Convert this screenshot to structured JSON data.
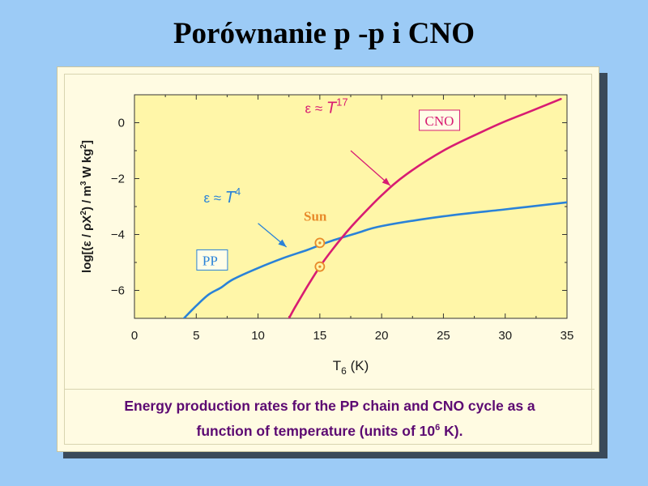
{
  "slide": {
    "title": "Porównanie p -p  i  CNO"
  },
  "caption": {
    "line1": "Energy production rates for the PP chain and CNO cycle as a",
    "line2_pre": "function of temperature (units of 10",
    "line2_sup": "6",
    "line2_post": " K)."
  },
  "chart_data": {
    "type": "line",
    "title": "",
    "xlabel": "T6 (K)",
    "ylabel": "log[(ε/ρX²) / m³ W kg²]",
    "xlabel_parts": {
      "main": "T",
      "sub": "6",
      "rest": " (K)"
    },
    "ylabel_parts": {
      "pre": "log[(ε / ρX",
      "sup1": "2",
      "mid": ") / m",
      "sup2": "3",
      "mid2": "  W kg",
      "sup3": "2",
      "post": "]"
    },
    "xlim": [
      0,
      35
    ],
    "ylim": [
      -7,
      1
    ],
    "xticks": [
      0,
      5,
      10,
      15,
      20,
      25,
      30,
      35
    ],
    "yticks": [
      0,
      -2,
      -4,
      -6
    ],
    "grid": false,
    "series": [
      {
        "name": "PP",
        "color": "#2a82d8",
        "x": [
          4,
          5,
          6,
          7,
          8,
          10,
          12,
          14,
          15,
          16,
          18,
          20,
          25,
          30,
          35
        ],
        "y": [
          -7.0,
          -6.55,
          -6.15,
          -5.9,
          -5.6,
          -5.2,
          -4.85,
          -4.55,
          -4.38,
          -4.22,
          -3.95,
          -3.7,
          -3.35,
          -3.1,
          -2.85
        ]
      },
      {
        "name": "CNO",
        "color": "#d81c72",
        "x": [
          12.5,
          13,
          14,
          15,
          16,
          17,
          18,
          20,
          22,
          25,
          28,
          30,
          32,
          34.5
        ],
        "y": [
          -7.0,
          -6.6,
          -5.85,
          -5.15,
          -4.55,
          -4.0,
          -3.5,
          -2.6,
          -1.85,
          -1.0,
          -0.35,
          0.05,
          0.4,
          0.85
        ]
      }
    ],
    "annotations": [
      {
        "name": "PP",
        "label": "PP",
        "x": 5.5,
        "y": -5.1,
        "color": "#2a82d8",
        "boxed": true
      },
      {
        "name": "CNO",
        "label": "CNO",
        "x": 23.5,
        "y": -0.1,
        "color": "#d81c72",
        "boxed": true
      },
      {
        "name": "pp-formula",
        "label": "ε ≈ ",
        "var": "T",
        "exp": "4",
        "x": 5.6,
        "y": -2.85,
        "color": "#2a82d8"
      },
      {
        "name": "cno-formula",
        "label": "ε ≈ ",
        "var": "T",
        "exp": "17",
        "x": 13.8,
        "y": 0.35,
        "color": "#d81c72"
      },
      {
        "name": "sun",
        "label": "Sun",
        "x": 13.7,
        "y": -3.5,
        "color": "#e88a2a"
      }
    ],
    "arrows": [
      {
        "name": "pp-arrow",
        "color": "#2a82d8",
        "from": [
          10.0,
          -3.6
        ],
        "to": [
          12.3,
          -4.45
        ]
      },
      {
        "name": "cno-arrow",
        "color": "#d81c72",
        "from": [
          17.5,
          -1.0
        ],
        "to": [
          20.7,
          -2.25
        ]
      }
    ],
    "markers": [
      {
        "name": "sun-marker-pp",
        "x": 15,
        "y": -4.3,
        "color": "#e88a2a"
      },
      {
        "name": "sun-marker-cno",
        "x": 15,
        "y": -5.15,
        "color": "#e88a2a"
      }
    ]
  }
}
